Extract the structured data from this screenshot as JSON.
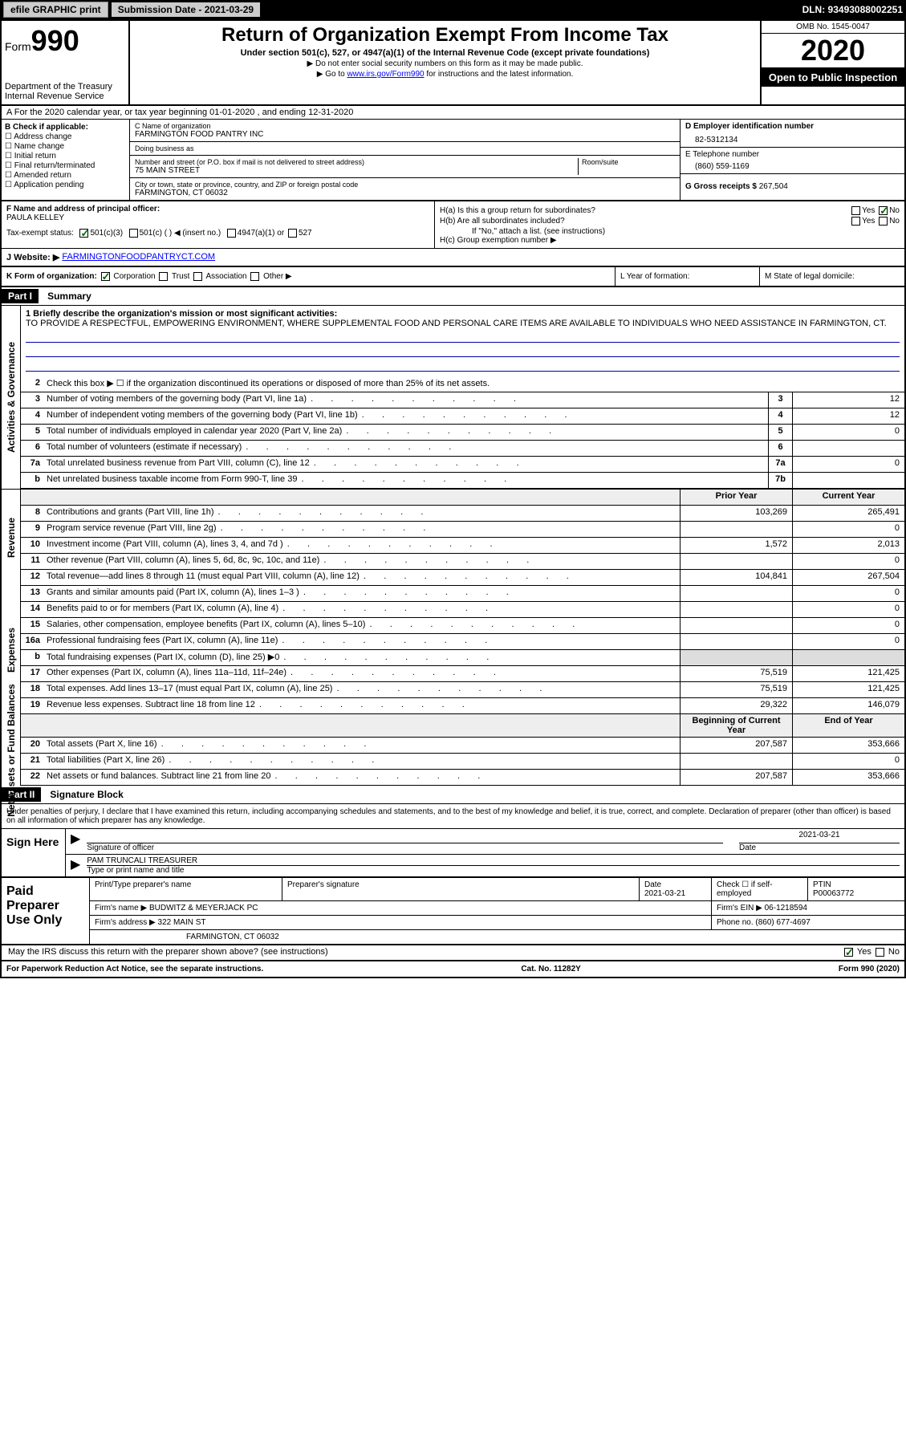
{
  "topbar": {
    "efile": "efile GRAPHIC print",
    "subdate_label": "Submission Date - 2021-03-29",
    "dln": "DLN: 93493088002251"
  },
  "header": {
    "form_label": "Form",
    "form_num": "990",
    "dept": "Department of the Treasury",
    "irs": "Internal Revenue Service",
    "title": "Return of Organization Exempt From Income Tax",
    "subtitle": "Under section 501(c), 527, or 4947(a)(1) of the Internal Revenue Code (except private foundations)",
    "note1": "▶ Do not enter social security numbers on this form as it may be made public.",
    "note2_pre": "▶ Go to ",
    "note2_link": "www.irs.gov/Form990",
    "note2_post": " for instructions and the latest information.",
    "omb": "OMB No. 1545-0047",
    "year": "2020",
    "open": "Open to Public Inspection"
  },
  "rowA": "A For the 2020 calendar year, or tax year beginning 01-01-2020     , and ending 12-31-2020",
  "boxB": {
    "label": "B Check if applicable:",
    "opts": [
      "Address change",
      "Name change",
      "Initial return",
      "Final return/terminated",
      "Amended return",
      "Application pending"
    ]
  },
  "boxC": {
    "name_label": "C Name of organization",
    "name": "FARMINGTON FOOD PANTRY INC",
    "dba_label": "Doing business as",
    "dba": "",
    "addr_label": "Number and street (or P.O. box if mail is not delivered to street address)",
    "room_label": "Room/suite",
    "addr": "75 MAIN STREET",
    "city_label": "City or town, state or province, country, and ZIP or foreign postal code",
    "city": "FARMINGTON, CT  06032"
  },
  "boxD": {
    "label": "D Employer identification number",
    "val": "82-5312134"
  },
  "boxE": {
    "label": "E Telephone number",
    "val": "(860) 559-1169"
  },
  "boxG": {
    "label": "G Gross receipts $",
    "val": "267,504"
  },
  "boxF": {
    "label": "F  Name and address of principal officer:",
    "val": "PAULA KELLEY"
  },
  "boxH": {
    "a": "H(a)  Is this a group return for subordinates?",
    "b": "H(b)  Are all subordinates included?",
    "note": "If \"No,\" attach a list. (see instructions)",
    "c": "H(c)  Group exemption number ▶"
  },
  "taxexempt": {
    "label": "Tax-exempt status:",
    "o1": "501(c)(3)",
    "o2": "501(c) (  ) ◀ (insert no.)",
    "o3": "4947(a)(1) or",
    "o4": "527"
  },
  "boxJ": {
    "label": "J   Website: ▶",
    "val": "FARMINGTONFOODPANTRYCT.COM"
  },
  "boxK": {
    "label": "K Form of organization:",
    "corp": "Corporation",
    "trust": "Trust",
    "assoc": "Association",
    "other": "Other ▶"
  },
  "boxL": "L Year of formation:",
  "boxM": "M State of legal domicile:",
  "part1": {
    "hdr": "Part I",
    "title": "Summary",
    "l1_label": "1  Briefly describe the organization's mission or most significant activities:",
    "l1_text": "TO PROVIDE A RESPECTFUL, EMPOWERING ENVIRONMENT, WHERE SUPPLEMENTAL FOOD AND PERSONAL CARE ITEMS ARE AVAILABLE TO INDIVIDUALS WHO NEED ASSISTANCE IN FARMINGTON, CT.",
    "l2": "Check this box ▶ ☐  if the organization discontinued its operations or disposed of more than 25% of its net assets.",
    "lines_ag": [
      {
        "n": "3",
        "d": "Number of voting members of the governing body (Part VI, line 1a)",
        "b": "3",
        "v": "12"
      },
      {
        "n": "4",
        "d": "Number of independent voting members of the governing body (Part VI, line 1b)",
        "b": "4",
        "v": "12"
      },
      {
        "n": "5",
        "d": "Total number of individuals employed in calendar year 2020 (Part V, line 2a)",
        "b": "5",
        "v": "0"
      },
      {
        "n": "6",
        "d": "Total number of volunteers (estimate if necessary)",
        "b": "6",
        "v": ""
      },
      {
        "n": "7a",
        "d": "Total unrelated business revenue from Part VIII, column (C), line 12",
        "b": "7a",
        "v": "0"
      },
      {
        "n": "b",
        "d": "Net unrelated business taxable income from Form 990-T, line 39",
        "b": "7b",
        "v": ""
      }
    ],
    "col_prior": "Prior Year",
    "col_curr": "Current Year",
    "rev": [
      {
        "n": "8",
        "d": "Contributions and grants (Part VIII, line 1h)",
        "p": "103,269",
        "c": "265,491"
      },
      {
        "n": "9",
        "d": "Program service revenue (Part VIII, line 2g)",
        "p": "",
        "c": "0"
      },
      {
        "n": "10",
        "d": "Investment income (Part VIII, column (A), lines 3, 4, and 7d )",
        "p": "1,572",
        "c": "2,013"
      },
      {
        "n": "11",
        "d": "Other revenue (Part VIII, column (A), lines 5, 6d, 8c, 9c, 10c, and 11e)",
        "p": "",
        "c": "0"
      },
      {
        "n": "12",
        "d": "Total revenue—add lines 8 through 11 (must equal Part VIII, column (A), line 12)",
        "p": "104,841",
        "c": "267,504"
      }
    ],
    "exp": [
      {
        "n": "13",
        "d": "Grants and similar amounts paid (Part IX, column (A), lines 1–3 )",
        "p": "",
        "c": "0"
      },
      {
        "n": "14",
        "d": "Benefits paid to or for members (Part IX, column (A), line 4)",
        "p": "",
        "c": "0"
      },
      {
        "n": "15",
        "d": "Salaries, other compensation, employee benefits (Part IX, column (A), lines 5–10)",
        "p": "",
        "c": "0"
      },
      {
        "n": "16a",
        "d": "Professional fundraising fees (Part IX, column (A), line 11e)",
        "p": "",
        "c": "0"
      },
      {
        "n": "b",
        "d": "Total fundraising expenses (Part IX, column (D), line 25) ▶0",
        "p": "SHADE",
        "c": "SHADE"
      },
      {
        "n": "17",
        "d": "Other expenses (Part IX, column (A), lines 11a–11d, 11f–24e)",
        "p": "75,519",
        "c": "121,425"
      },
      {
        "n": "18",
        "d": "Total expenses. Add lines 13–17 (must equal Part IX, column (A), line 25)",
        "p": "75,519",
        "c": "121,425"
      },
      {
        "n": "19",
        "d": "Revenue less expenses. Subtract line 18 from line 12",
        "p": "29,322",
        "c": "146,079"
      }
    ],
    "col_beg": "Beginning of Current Year",
    "col_end": "End of Year",
    "na": [
      {
        "n": "20",
        "d": "Total assets (Part X, line 16)",
        "p": "207,587",
        "c": "353,666"
      },
      {
        "n": "21",
        "d": "Total liabilities (Part X, line 26)",
        "p": "",
        "c": "0"
      },
      {
        "n": "22",
        "d": "Net assets or fund balances. Subtract line 21 from line 20",
        "p": "207,587",
        "c": "353,666"
      }
    ],
    "side_ag": "Activities & Governance",
    "side_rev": "Revenue",
    "side_exp": "Expenses",
    "side_na": "Net Assets or Fund Balances"
  },
  "part2": {
    "hdr": "Part II",
    "title": "Signature Block",
    "decl": "Under penalties of perjury, I declare that I have examined this return, including accompanying schedules and statements, and to the best of my knowledge and belief, it is true, correct, and complete. Declaration of preparer (other than officer) is based on all information of which preparer has any knowledge.",
    "sign_here": "Sign Here",
    "sig_officer": "Signature of officer",
    "sig_date": "2021-03-21",
    "date_label": "Date",
    "sig_name": "PAM TRUNCALI TREASURER",
    "sig_type": "Type or print name and title",
    "paid": "Paid Preparer Use Only",
    "pt_name_label": "Print/Type preparer's name",
    "pt_sig_label": "Preparer's signature",
    "pt_date_label": "Date",
    "pt_date": "2021-03-21",
    "pt_check": "Check ☐  if self-employed",
    "ptin_label": "PTIN",
    "ptin": "P00063772",
    "firm_name_label": "Firm's name      ▶",
    "firm_name": "BUDWITZ & MEYERJACK PC",
    "firm_ein_label": "Firm's EIN ▶",
    "firm_ein": "06-1218594",
    "firm_addr_label": "Firm's address ▶",
    "firm_addr1": "322 MAIN ST",
    "firm_addr2": "FARMINGTON, CT  06032",
    "phone_label": "Phone no.",
    "phone": "(860) 677-4697",
    "discuss": "May the IRS discuss this return with the preparer shown above? (see instructions)"
  },
  "footer": {
    "pra": "For Paperwork Reduction Act Notice, see the separate instructions.",
    "cat": "Cat. No. 11282Y",
    "form": "Form 990 (2020)"
  }
}
